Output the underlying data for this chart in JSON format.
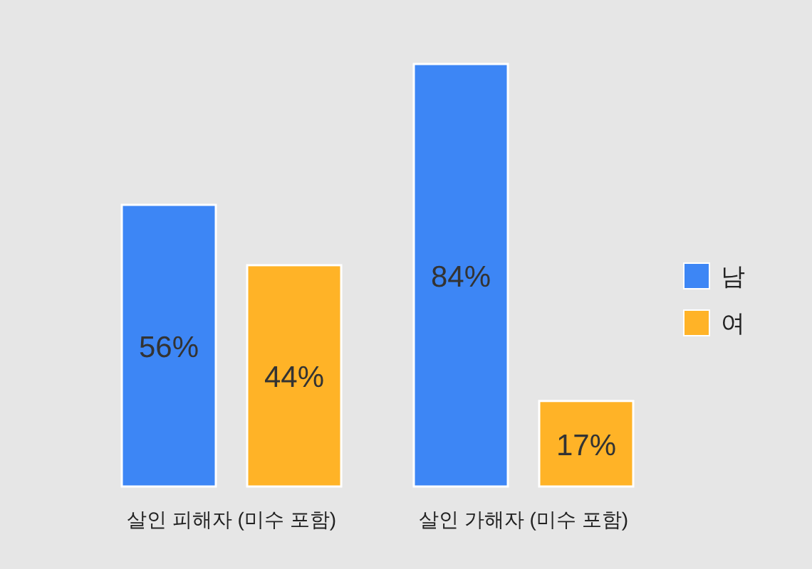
{
  "chart_data": {
    "type": "bar",
    "categories": [
      "살인 피해자 (미수 포함)",
      "살인 가해자 (미수 포함)"
    ],
    "series": [
      {
        "name": "남",
        "color": "#3d86f5",
        "values": [
          56,
          84
        ],
        "value_labels": [
          "56%",
          "84%"
        ]
      },
      {
        "name": "여",
        "color": "#ffb327",
        "values": [
          44,
          17
        ],
        "value_labels": [
          "44%",
          "17%"
        ]
      }
    ],
    "legend": "right"
  }
}
